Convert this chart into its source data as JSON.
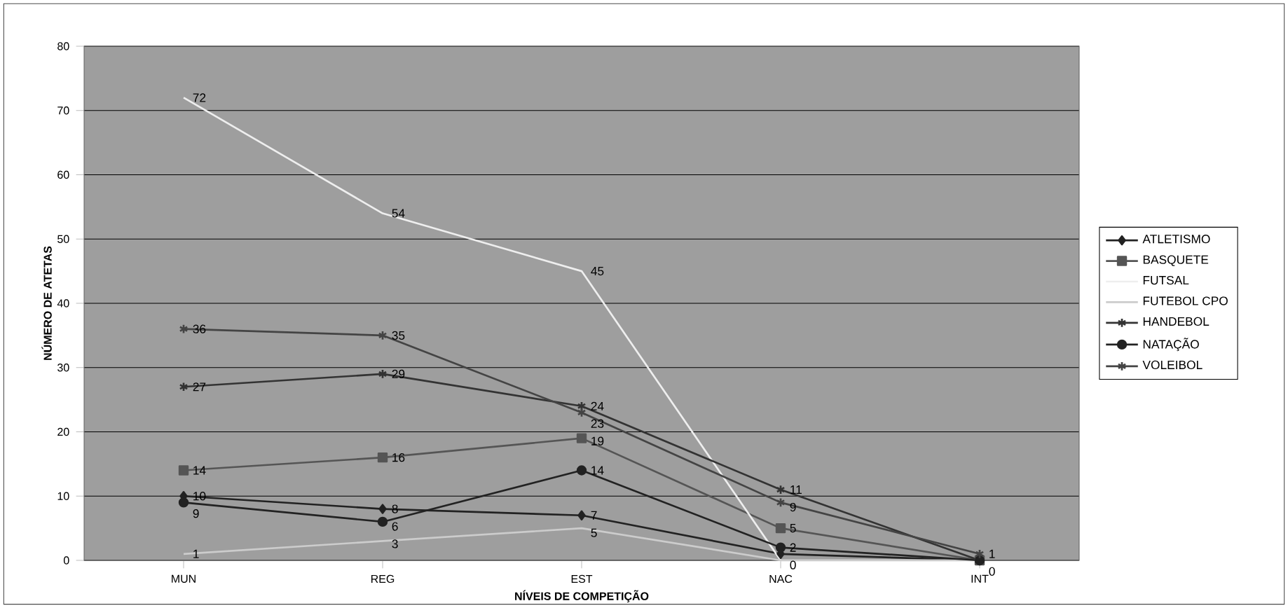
{
  "chart_data": {
    "type": "line",
    "xlabel": "NÍVEIS DE COMPETIÇÃO",
    "ylabel": "NÚMERO DE ATETAS",
    "categories": [
      "MUN",
      "REG",
      "EST",
      "NAC",
      "INT"
    ],
    "series": [
      {
        "name": "ATLETISMO",
        "color": "#222222",
        "marker": "diamond",
        "values": [
          10,
          8,
          7,
          1,
          0
        ],
        "value_labels": [
          "10",
          "8",
          "7",
          null,
          null
        ]
      },
      {
        "name": "BASQUETE",
        "color": "#555555",
        "marker": "square",
        "values": [
          14,
          16,
          19,
          5,
          0
        ],
        "value_labels": [
          "14",
          "16",
          "19",
          "5",
          "0"
        ]
      },
      {
        "name": "FUTSAL",
        "color": "#eeeeee",
        "marker": "none",
        "values": [
          72,
          54,
          45,
          0,
          0
        ],
        "value_labels": [
          "72",
          "54",
          "45",
          "0",
          null
        ]
      },
      {
        "name": "FUTEBOL CPO",
        "color": "#cccccc",
        "marker": "none",
        "values": [
          1,
          3,
          5,
          0,
          0
        ],
        "value_labels": [
          "1",
          "3",
          "5",
          null,
          null
        ]
      },
      {
        "name": "HANDEBOL",
        "color": "#333333",
        "marker": "cross",
        "values": [
          27,
          29,
          24,
          11,
          0
        ],
        "value_labels": [
          "27",
          "29",
          "24",
          "11",
          null
        ]
      },
      {
        "name": "NATAÇÃO",
        "color": "#222222",
        "marker": "circle",
        "values": [
          9,
          6,
          14,
          2,
          0
        ],
        "value_labels": [
          "9",
          "6",
          "14",
          "2",
          null
        ]
      },
      {
        "name": "VOLEIBOL",
        "color": "#444444",
        "marker": "cross",
        "values": [
          36,
          35,
          23,
          9,
          1
        ],
        "value_labels": [
          "36",
          "35",
          "23",
          "9",
          "1"
        ]
      }
    ],
    "ylim": [
      0,
      80
    ],
    "yticks": [
      0,
      10,
      20,
      30,
      40,
      50,
      60,
      70,
      80
    ],
    "grid": "y",
    "legend": "right"
  }
}
